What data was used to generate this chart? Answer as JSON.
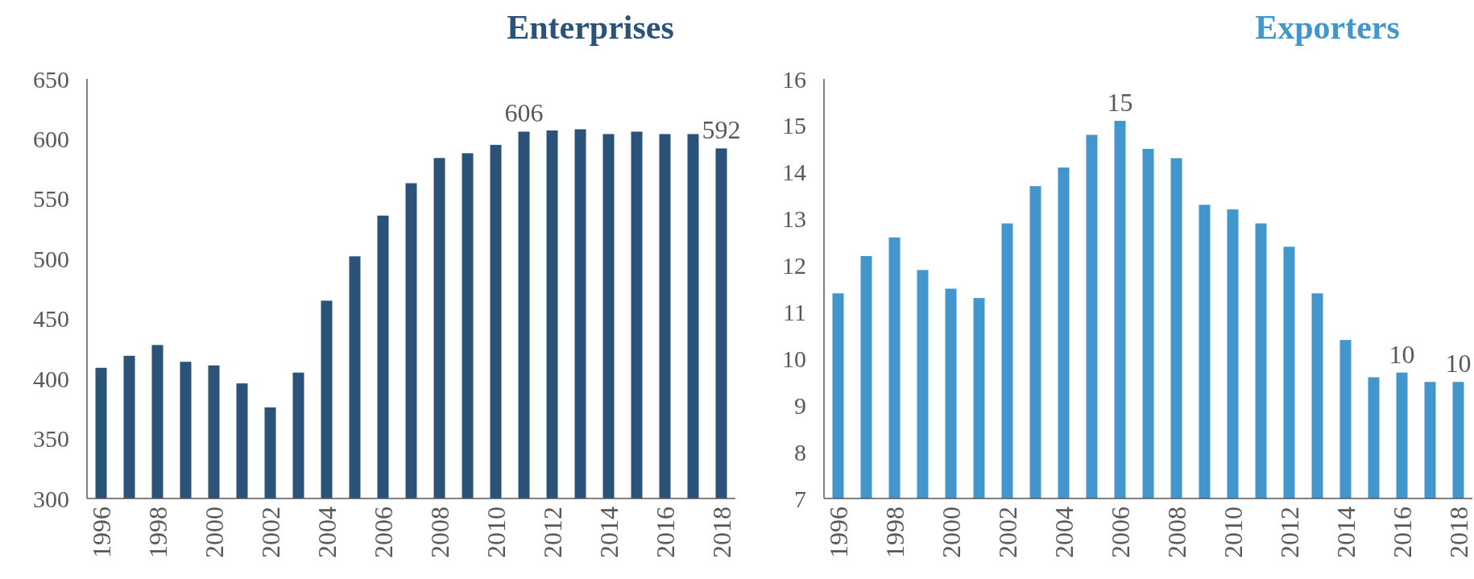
{
  "chart_data": [
    {
      "type": "bar",
      "title": "Enterprises",
      "categories": [
        "1996",
        null,
        "1998",
        null,
        "2000",
        null,
        "2002",
        null,
        "2004",
        null,
        "2006",
        null,
        "2008",
        null,
        "2010",
        null,
        "2012",
        null,
        "2014",
        null,
        "2016",
        null,
        "2018"
      ],
      "series": [
        {
          "color": "#2b5279",
          "values": [
            409,
            419,
            428,
            414,
            411,
            396,
            376,
            405,
            465,
            502,
            536,
            563,
            584,
            588,
            595,
            606,
            607,
            608,
            604,
            606,
            604,
            604,
            592
          ],
          "value_labels": [
            null,
            null,
            null,
            null,
            null,
            null,
            null,
            null,
            null,
            null,
            null,
            null,
            null,
            null,
            null,
            "606",
            null,
            null,
            null,
            null,
            null,
            null,
            "592"
          ]
        }
      ],
      "ylim": [
        300,
        650
      ],
      "yticks": [
        300,
        350,
        400,
        450,
        500,
        550,
        600,
        650
      ],
      "grid": false
    },
    {
      "type": "bar",
      "title": "Exporters",
      "categories": [
        "1996",
        null,
        "1998",
        null,
        "2000",
        null,
        "2002",
        null,
        "2004",
        null,
        "2006",
        null,
        "2008",
        null,
        "2010",
        null,
        "2012",
        null,
        "2014",
        null,
        "2016",
        null,
        "2018"
      ],
      "series": [
        {
          "color": "#4296cc",
          "values": [
            11.4,
            12.2,
            12.6,
            11.9,
            11.5,
            11.3,
            12.9,
            13.7,
            14.1,
            14.8,
            15.1,
            14.5,
            14.3,
            13.3,
            13.2,
            12.9,
            12.4,
            11.4,
            10.4,
            9.6,
            9.7,
            9.5,
            9.5
          ],
          "value_labels": [
            null,
            null,
            null,
            null,
            null,
            null,
            null,
            null,
            null,
            null,
            "15",
            null,
            null,
            null,
            null,
            null,
            null,
            null,
            null,
            null,
            "10",
            null,
            "10"
          ]
        }
      ],
      "ylim": [
        7,
        16
      ],
      "yticks": [
        7,
        8,
        9,
        10,
        11,
        12,
        13,
        14,
        15,
        16
      ],
      "grid": false
    }
  ]
}
